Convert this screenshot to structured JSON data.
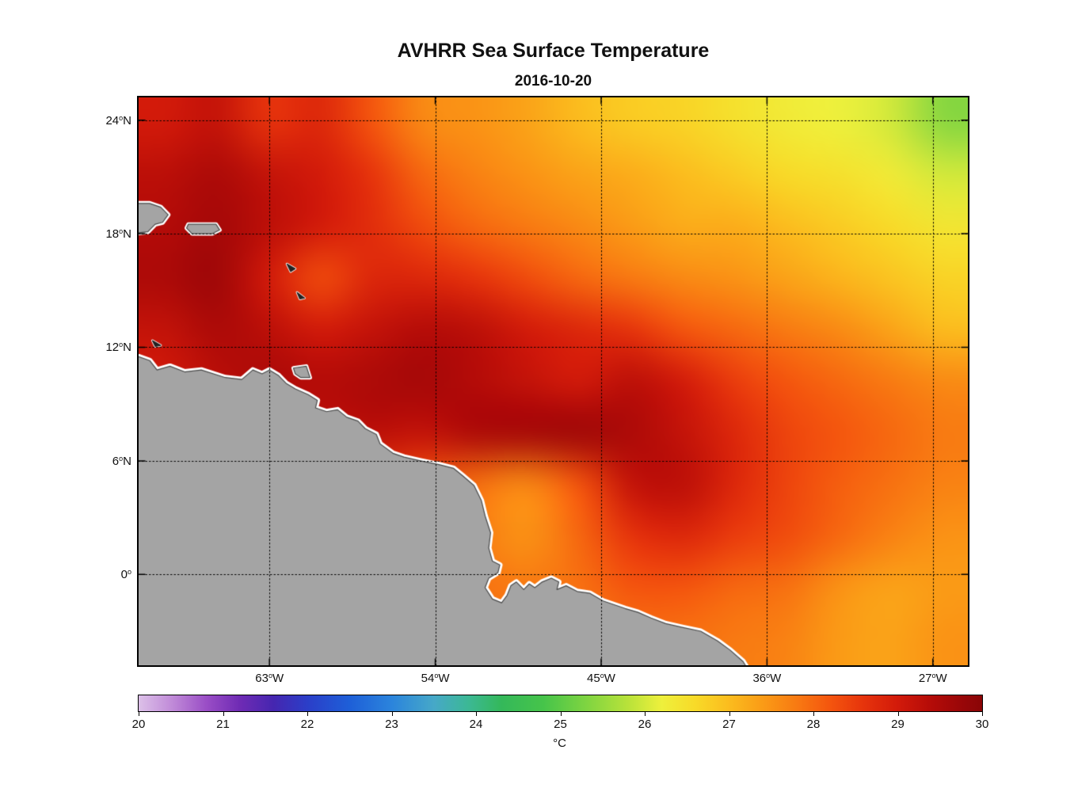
{
  "title": "AVHRR Sea Surface Temperature",
  "subtitle": "2016-10-20",
  "chart_data": {
    "type": "heatmap",
    "title": "AVHRR Sea Surface Temperature",
    "subtitle": "2016-10-20",
    "units": "°C",
    "degree_mark": "o",
    "grid": "dotted",
    "extent": {
      "lon": [
        -70.1,
        -25.1
      ],
      "lat": [
        -4.8,
        25.2
      ]
    },
    "x_ticks": [
      {
        "value": -63,
        "text": "63",
        "suffix": "W"
      },
      {
        "value": -54,
        "text": "54",
        "suffix": "W"
      },
      {
        "value": -45,
        "text": "45",
        "suffix": "W"
      },
      {
        "value": -36,
        "text": "36",
        "suffix": "W"
      },
      {
        "value": -27,
        "text": "27",
        "suffix": "W"
      }
    ],
    "y_ticks": [
      {
        "value": 24,
        "text": "24",
        "suffix": "N"
      },
      {
        "value": 18,
        "text": "18",
        "suffix": "N"
      },
      {
        "value": 12,
        "text": "12",
        "suffix": "N"
      },
      {
        "value": 6,
        "text": "6",
        "suffix": "N"
      },
      {
        "value": 0,
        "text": "0",
        "suffix": ""
      }
    ],
    "colorbar_range": [
      20,
      30
    ],
    "colorbar_ticks": [
      "20",
      "21",
      "22",
      "23",
      "24",
      "25",
      "26",
      "27",
      "28",
      "29",
      "30"
    ],
    "colormap_stops": [
      [
        20.0,
        "#dcc0e8"
      ],
      [
        20.4,
        "#c08ad8"
      ],
      [
        20.8,
        "#9a4ec6"
      ],
      [
        21.2,
        "#6f2bb4"
      ],
      [
        21.6,
        "#4526b0"
      ],
      [
        22.0,
        "#2b3ec8"
      ],
      [
        22.5,
        "#1e5fd8"
      ],
      [
        23.0,
        "#2b84dc"
      ],
      [
        23.5,
        "#46a8c8"
      ],
      [
        23.9,
        "#3cb896"
      ],
      [
        24.3,
        "#34b85a"
      ],
      [
        24.8,
        "#46c44a"
      ],
      [
        25.3,
        "#7ed441"
      ],
      [
        25.8,
        "#b8e23a"
      ],
      [
        26.2,
        "#eef03c"
      ],
      [
        26.6,
        "#f8da28"
      ],
      [
        27.0,
        "#fbbc1e"
      ],
      [
        27.4,
        "#fa9b16"
      ],
      [
        27.8,
        "#f87a12"
      ],
      [
        28.2,
        "#f4550e"
      ],
      [
        28.6,
        "#e6330c"
      ],
      [
        29.0,
        "#d21a0a"
      ],
      [
        29.4,
        "#b40b08"
      ],
      [
        29.8,
        "#960608"
      ],
      [
        30.0,
        "#8a0506"
      ]
    ],
    "lon": [
      -70,
      -67,
      -64,
      -61,
      -58,
      -55,
      -52,
      -49,
      -46,
      -43,
      -40,
      -37,
      -34,
      -31,
      -28,
      -25
    ],
    "lat": [
      25,
      22,
      19,
      16,
      13,
      10,
      7,
      4,
      1,
      -2,
      -5
    ],
    "sst": [
      [
        29.0,
        29.2,
        28.6,
        28.8,
        28.2,
        27.6,
        27.5,
        27.3,
        27.0,
        26.8,
        26.7,
        26.5,
        26.3,
        26.2,
        26.0,
        25.4
      ],
      [
        29.3,
        29.5,
        29.2,
        29.0,
        28.6,
        28.0,
        27.7,
        27.5,
        27.3,
        27.2,
        27.0,
        26.8,
        26.6,
        26.5,
        26.3,
        26.0
      ],
      [
        29.4,
        29.6,
        29.3,
        29.0,
        28.7,
        28.3,
        28.0,
        27.8,
        27.6,
        27.4,
        27.2,
        27.2,
        27.0,
        26.8,
        26.6,
        26.4
      ],
      [
        29.5,
        29.7,
        29.0,
        28.3,
        28.8,
        28.8,
        28.6,
        28.3,
        28.0,
        27.8,
        27.6,
        27.5,
        27.3,
        27.1,
        26.9,
        26.7
      ],
      [
        29.2,
        29.5,
        29.3,
        29.0,
        29.2,
        29.4,
        29.3,
        29.0,
        28.8,
        28.6,
        28.2,
        28.0,
        27.8,
        27.6,
        27.3,
        27.0
      ],
      [
        29.0,
        29.3,
        29.5,
        29.4,
        29.5,
        29.6,
        29.4,
        29.2,
        29.0,
        29.3,
        29.0,
        28.5,
        28.2,
        28.0,
        27.8,
        27.6
      ],
      [
        29.0,
        29.1,
        29.2,
        29.2,
        29.3,
        29.2,
        29.5,
        29.6,
        29.7,
        29.5,
        29.2,
        28.8,
        28.4,
        28.2,
        28.0,
        27.8
      ],
      [
        28.8,
        28.8,
        28.8,
        28.6,
        28.5,
        28.2,
        27.9,
        27.6,
        28.2,
        29.2,
        29.3,
        28.8,
        28.4,
        28.1,
        27.9,
        27.7
      ],
      [
        28.5,
        28.5,
        28.5,
        28.4,
        28.3,
        28.1,
        27.8,
        27.5,
        28.0,
        28.6,
        28.8,
        28.5,
        28.3,
        28.0,
        27.7,
        27.5
      ],
      [
        28.3,
        28.3,
        28.3,
        28.2,
        28.1,
        28.0,
        27.9,
        27.8,
        27.9,
        28.2,
        28.2,
        28.0,
        27.9,
        27.5,
        27.3,
        27.4
      ],
      [
        28.2,
        28.2,
        28.2,
        28.1,
        28.0,
        27.9,
        27.9,
        27.8,
        27.8,
        27.9,
        27.9,
        27.8,
        27.7,
        27.4,
        27.3,
        27.5
      ]
    ],
    "land": {
      "fill": "#a4a4a4",
      "edge": "#4a4a4a",
      "polygons": [
        {
          "name": "south-america",
          "halo": 7,
          "fill": "#a4a4a4",
          "edge": "#4a4a4a",
          "pts": [
            [
              -71.0,
              11.6
            ],
            [
              -70.1,
              11.5
            ],
            [
              -69.5,
              11.3
            ],
            [
              -69.1,
              10.8
            ],
            [
              -68.4,
              11.0
            ],
            [
              -67.6,
              10.7
            ],
            [
              -66.7,
              10.8
            ],
            [
              -65.4,
              10.4
            ],
            [
              -64.5,
              10.3
            ],
            [
              -63.9,
              10.8
            ],
            [
              -63.4,
              10.6
            ],
            [
              -63.0,
              10.8
            ],
            [
              -62.5,
              10.5
            ],
            [
              -62.1,
              10.1
            ],
            [
              -61.6,
              9.8
            ],
            [
              -60.9,
              9.5
            ],
            [
              -60.4,
              9.2
            ],
            [
              -60.5,
              8.8
            ],
            [
              -59.9,
              8.6
            ],
            [
              -59.3,
              8.7
            ],
            [
              -58.8,
              8.3
            ],
            [
              -58.2,
              8.1
            ],
            [
              -57.8,
              7.7
            ],
            [
              -57.2,
              7.4
            ],
            [
              -57.0,
              6.9
            ],
            [
              -56.3,
              6.4
            ],
            [
              -55.7,
              6.2
            ],
            [
              -54.8,
              6.0
            ],
            [
              -53.8,
              5.8
            ],
            [
              -53.0,
              5.6
            ],
            [
              -52.5,
              5.2
            ],
            [
              -51.9,
              4.7
            ],
            [
              -51.5,
              3.9
            ],
            [
              -51.3,
              3.1
            ],
            [
              -51.0,
              2.2
            ],
            [
              -51.1,
              1.4
            ],
            [
              -50.9,
              0.7
            ],
            [
              -50.5,
              0.5
            ],
            [
              -50.6,
              0.1
            ],
            [
              -51.1,
              -0.2
            ],
            [
              -51.3,
              -0.7
            ],
            [
              -50.9,
              -1.3
            ],
            [
              -50.4,
              -1.5
            ],
            [
              -50.1,
              -1.1
            ],
            [
              -49.9,
              -0.6
            ],
            [
              -49.6,
              -0.4
            ],
            [
              -49.2,
              -0.8
            ],
            [
              -48.9,
              -0.5
            ],
            [
              -48.6,
              -0.7
            ],
            [
              -48.2,
              -0.4
            ],
            [
              -47.7,
              -0.2
            ],
            [
              -47.3,
              -0.4
            ],
            [
              -47.4,
              -0.8
            ],
            [
              -46.9,
              -0.6
            ],
            [
              -46.3,
              -0.9
            ],
            [
              -45.6,
              -1.0
            ],
            [
              -44.9,
              -1.4
            ],
            [
              -44.3,
              -1.6
            ],
            [
              -43.7,
              -1.8
            ],
            [
              -43.0,
              -2.0
            ],
            [
              -42.3,
              -2.3
            ],
            [
              -41.5,
              -2.6
            ],
            [
              -40.6,
              -2.8
            ],
            [
              -39.6,
              -3.0
            ],
            [
              -38.7,
              -3.5
            ],
            [
              -38.0,
              -4.0
            ],
            [
              -37.3,
              -4.6
            ],
            [
              -36.8,
              -5.4
            ],
            [
              -36.5,
              -6.0
            ],
            [
              -71.0,
              -6.0
            ]
          ]
        },
        {
          "name": "hispaniola",
          "halo": 6,
          "fill": "#a4a4a4",
          "edge": "#4a4a4a",
          "pts": [
            [
              -70.6,
              19.6
            ],
            [
              -69.5,
              19.6
            ],
            [
              -68.9,
              19.4
            ],
            [
              -68.5,
              19.0
            ],
            [
              -68.8,
              18.6
            ],
            [
              -69.2,
              18.5
            ],
            [
              -69.6,
              18.1
            ],
            [
              -70.6,
              18.0
            ]
          ]
        },
        {
          "name": "puerto-rico",
          "halo": 5,
          "fill": "#a4a4a4",
          "edge": "#4a4a4a",
          "pts": [
            [
              -67.4,
              18.5
            ],
            [
              -65.9,
              18.5
            ],
            [
              -65.7,
              18.2
            ],
            [
              -66.1,
              18.0
            ],
            [
              -67.2,
              18.0
            ],
            [
              -67.5,
              18.3
            ]
          ]
        },
        {
          "name": "trinidad",
          "halo": 5,
          "fill": "#a4a4a4",
          "edge": "#4a4a4a",
          "pts": [
            [
              -61.7,
              10.9
            ],
            [
              -61.0,
              11.0
            ],
            [
              -60.8,
              10.4
            ],
            [
              -61.3,
              10.4
            ],
            [
              -61.6,
              10.6
            ]
          ]
        },
        {
          "name": "small-island-a",
          "halo": 3,
          "fill": "#222222",
          "edge": "#222222",
          "pts": [
            [
              -62.05,
              16.4
            ],
            [
              -61.6,
              16.15
            ],
            [
              -61.85,
              16.0
            ]
          ]
        },
        {
          "name": "small-island-b",
          "halo": 3,
          "fill": "#222222",
          "edge": "#222222",
          "pts": [
            [
              -61.5,
              14.9
            ],
            [
              -61.1,
              14.6
            ],
            [
              -61.35,
              14.55
            ]
          ]
        },
        {
          "name": "small-island-c",
          "halo": 3,
          "fill": "#222222",
          "edge": "#222222",
          "pts": [
            [
              -69.35,
              12.35
            ],
            [
              -68.9,
              12.1
            ],
            [
              -69.2,
              12.05
            ]
          ]
        }
      ]
    }
  }
}
